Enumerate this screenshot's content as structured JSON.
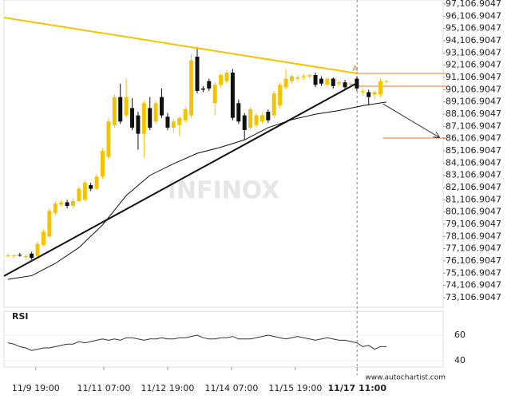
{
  "chart_data": [
    {
      "type": "candlestick",
      "x": [
        0,
        1,
        2,
        3,
        4,
        5,
        6,
        7,
        8,
        9,
        10,
        11,
        12,
        13,
        14,
        15,
        16,
        17,
        18,
        19,
        20,
        21,
        22,
        23,
        24,
        25,
        26,
        27,
        28,
        29,
        30,
        31,
        32,
        33,
        34,
        35,
        36,
        37,
        38,
        39,
        40,
        41,
        42,
        43,
        44,
        45,
        46,
        47,
        48,
        49,
        50,
        51,
        52,
        53,
        54,
        55,
        56,
        57,
        58,
        59,
        60,
        61,
        62,
        63,
        64
      ],
      "open": [
        76550,
        76500,
        76600,
        76450,
        76700,
        76500,
        77400,
        78100,
        80000,
        80700,
        80900,
        80600,
        81000,
        81100,
        82300,
        82000,
        83000,
        84600,
        87200,
        89500,
        88000,
        88600,
        88000,
        86500,
        88600,
        87500,
        89500,
        87900,
        87000,
        87200,
        87600,
        88000,
        92800,
        90200,
        90800,
        89000,
        90500,
        90800,
        91500,
        89000,
        88000,
        87000,
        87200,
        87500,
        88300,
        88000,
        88800,
        90300,
        90800,
        91000,
        91100,
        91200,
        91300,
        91000,
        90500,
        91000,
        90600,
        90700,
        90500,
        91000,
        89900,
        89900,
        89700,
        89700,
        90800
      ],
      "high": [
        76700,
        76650,
        76750,
        76650,
        76850,
        77700,
        78700,
        80400,
        81000,
        81100,
        81100,
        81200,
        82200,
        82700,
        82500,
        83200,
        85300,
        87800,
        89700,
        90600,
        91000,
        89400,
        88300,
        89200,
        89500,
        89200,
        90200,
        88200,
        87700,
        87900,
        88700,
        93000,
        93600,
        90400,
        91000,
        90700,
        91400,
        91700,
        91800,
        89300,
        88200,
        88700,
        88200,
        88200,
        88500,
        90000,
        90700,
        91800,
        91300,
        91300,
        91400,
        91400,
        91500,
        91200,
        91100,
        91100,
        90800,
        90900,
        90700,
        91200,
        90200,
        90100,
        90000,
        91000,
        90900
      ],
      "low": [
        76400,
        76350,
        76450,
        76300,
        76200,
        76400,
        77300,
        78000,
        79800,
        80500,
        80400,
        80400,
        80900,
        81000,
        81800,
        81900,
        82800,
        84400,
        87000,
        87300,
        87800,
        86800,
        85200,
        84500,
        86800,
        87300,
        87800,
        86800,
        86600,
        86300,
        87400,
        87800,
        89800,
        89900,
        90000,
        88000,
        90300,
        90600,
        87600,
        87300,
        86000,
        86800,
        87000,
        87300,
        87400,
        87800,
        88600,
        90100,
        90600,
        90800,
        90900,
        91000,
        90300,
        90400,
        90300,
        90200,
        90400,
        90100,
        90300,
        90000,
        89600,
        88800,
        89300,
        89500,
        90600
      ],
      "close": [
        76550,
        76550,
        76550,
        76500,
        76350,
        77500,
        78500,
        80200,
        80800,
        80900,
        80600,
        81000,
        82000,
        82500,
        82000,
        83000,
        85100,
        87500,
        89500,
        87500,
        89500,
        87000,
        86500,
        89000,
        87000,
        89000,
        88000,
        87000,
        87500,
        87800,
        88500,
        92500,
        90000,
        90100,
        90200,
        90500,
        91300,
        91500,
        87800,
        87500,
        86800,
        88500,
        88000,
        88000,
        87600,
        89800,
        90500,
        91000,
        91200,
        91100,
        91200,
        91300,
        90500,
        90600,
        91000,
        90400,
        90700,
        90300,
        90600,
        90200,
        90000,
        89500,
        89900,
        90800,
        90800
      ],
      "up_color": "#f5c400",
      "down_color": "#111111",
      "overlay": {
        "color": "#111111",
        "x": [
          0,
          4,
          8,
          12,
          16,
          20,
          24,
          28,
          32,
          36,
          40,
          44,
          48,
          52,
          56,
          60,
          64
        ],
        "values": [
          74600,
          74900,
          75900,
          77200,
          79050,
          81450,
          83100,
          84050,
          84900,
          85400,
          86000,
          87000,
          87650,
          88100,
          88400,
          88800,
          89090
        ]
      },
      "trendlines": [
        {
          "color": "#f5c400",
          "x": [
            -0.68,
            59.05
          ],
          "y": [
            96000,
            91430
          ]
        },
        {
          "color": "#111111",
          "x": [
            -0.68,
            59.05
          ],
          "y": [
            74870,
            90650
          ]
        },
        {
          "color": "#333333",
          "x": [
            63.4,
            72.9
          ],
          "y": [
            88950,
            86220
          ],
          "arrow": true
        }
      ],
      "levels": [
        {
          "color": "#e8763a",
          "from": 59.05,
          "value": 91430
        },
        {
          "color": "#e8763a",
          "from": 59.05,
          "value": 90390
        },
        {
          "color": "#e8763a",
          "from": 63.4,
          "value": 86150
        }
      ],
      "pattern_label": "A",
      "pattern_x": 59.05,
      "watermark": "INFINOX",
      "xlim": [
        -0.68,
        73.6
      ],
      "ylim": [
        72320,
        97433
      ],
      "yticks": [
        {
          "value": 73106.9047,
          "label": "73,106.9047"
        },
        {
          "value": 74106.9047,
          "label": "74,106.9047"
        },
        {
          "value": 75106.9047,
          "label": "75,106.9047"
        },
        {
          "value": 76106.9047,
          "label": "76,106.9047"
        },
        {
          "value": 77106.9047,
          "label": "77,106.9047"
        },
        {
          "value": 78106.9047,
          "label": "78,106.9047"
        },
        {
          "value": 79106.9047,
          "label": "79,106.9047"
        },
        {
          "value": 80106.9047,
          "label": "80,106.9047"
        },
        {
          "value": 81106.9047,
          "label": "81,106.9047"
        },
        {
          "value": 82106.9047,
          "label": "82,106.9047"
        },
        {
          "value": 83106.9047,
          "label": "83,106.9047"
        },
        {
          "value": 84106.9047,
          "label": "84,106.9047"
        },
        {
          "value": 85106.9047,
          "label": "85,106.9047"
        },
        {
          "value": 86106.9047,
          "label": "86,106.9047"
        },
        {
          "value": 87106.9047,
          "label": "87,106.9047"
        },
        {
          "value": 88106.9047,
          "label": "88,106.9047"
        },
        {
          "value": 89106.9047,
          "label": "89,106.9047"
        },
        {
          "value": 90106.9047,
          "label": "90,106.9047"
        },
        {
          "value": 91106.9047,
          "label": "91,106.9047"
        },
        {
          "value": 92106.9047,
          "label": "92,106.9047"
        },
        {
          "value": 93106.9047,
          "label": "93,106.9047"
        },
        {
          "value": 94106.9047,
          "label": "94,106.9047"
        },
        {
          "value": 95106.9047,
          "label": "95,106.9047"
        },
        {
          "value": 96106.9047,
          "label": "96,106.9047"
        },
        {
          "value": 97106.9047,
          "label": "97,106.9047"
        }
      ]
    },
    {
      "type": "line",
      "title": "RSI",
      "color": "#333333",
      "x": [
        0,
        1,
        2,
        3,
        4,
        5,
        6,
        7,
        8,
        9,
        10,
        11,
        12,
        13,
        14,
        15,
        16,
        17,
        18,
        19,
        20,
        21,
        22,
        23,
        24,
        25,
        26,
        27,
        28,
        29,
        30,
        31,
        32,
        33,
        34,
        35,
        36,
        37,
        38,
        39,
        40,
        41,
        42,
        43,
        44,
        45,
        46,
        47,
        48,
        49,
        50,
        51,
        52,
        53,
        54,
        55,
        56,
        57,
        58,
        59,
        60,
        61,
        62,
        63,
        64
      ],
      "values": [
        54,
        53,
        51,
        50,
        48,
        49,
        50,
        50,
        51,
        52,
        53,
        53,
        55,
        54,
        55,
        56,
        57,
        56,
        57,
        56,
        58,
        58,
        57,
        56,
        57,
        57,
        58,
        57,
        57,
        58,
        58,
        59,
        60,
        58,
        57,
        57,
        58,
        58,
        59,
        57,
        57,
        57,
        58,
        59,
        60,
        59,
        58,
        57,
        58,
        59,
        58,
        57,
        56,
        57,
        58,
        57,
        56,
        56,
        55,
        54,
        51,
        52,
        49,
        51,
        51
      ],
      "xlim": [
        -0.68,
        73.6
      ],
      "ylim": [
        35,
        78.75
      ],
      "yticks": [
        40,
        60
      ],
      "xticks": [
        {
          "value": 4.7,
          "label": "11/9 19:00"
        },
        {
          "value": 16.2,
          "label": "11/11 07:00"
        },
        {
          "value": 27,
          "label": "11/12 19:00"
        },
        {
          "value": 37.8,
          "label": "11/14 07:00"
        },
        {
          "value": 48.6,
          "label": "11/15 19:00"
        },
        {
          "value": 59.05,
          "label": "11/17 11:00"
        }
      ],
      "source": "www.autochartist.com"
    }
  ]
}
